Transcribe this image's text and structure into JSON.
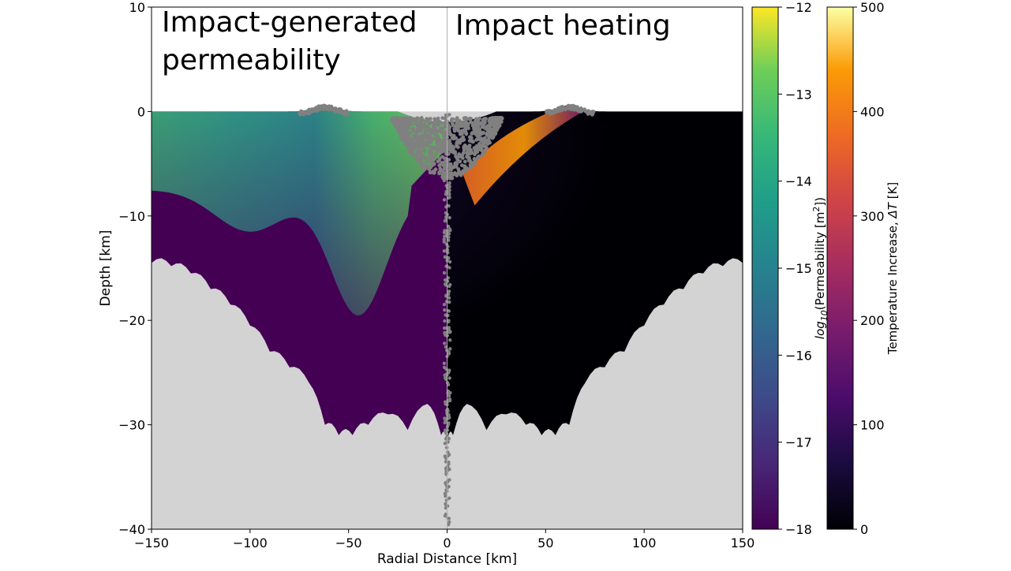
{
  "chart_data": {
    "type": "heatmap",
    "title": "",
    "panel_titles": {
      "left_line1": "Impact-generated",
      "left_line2": "permeability",
      "right": "Impact heating"
    },
    "xlabel": "Radial Distance [km]",
    "ylabel": "Depth [km]",
    "xlim": [
      -150,
      150
    ],
    "ylim": [
      -40,
      10
    ],
    "xticks": [
      -150,
      -100,
      -50,
      0,
      50,
      100,
      150
    ],
    "yticks": [
      -40,
      -30,
      -20,
      -10,
      0,
      10
    ],
    "xtick_labels": [
      "−150",
      "−100",
      "−50",
      "0",
      "50",
      "100",
      "150"
    ],
    "ytick_labels": [
      "−40",
      "−30",
      "−20",
      "−10",
      "0",
      "10"
    ],
    "grid": false,
    "colorbars": [
      {
        "name": "permeability",
        "label_prefix": "log",
        "label_sub": "10",
        "label_main": "(Permeability [m",
        "label_sup": "2",
        "label_suffix": "])",
        "colormap": "viridis",
        "range": [
          -18,
          -12
        ],
        "ticks": [
          -18,
          -17,
          -16,
          -15,
          -14,
          -13,
          -12
        ],
        "tick_labels": [
          "−18",
          "−17",
          "−16",
          "−15",
          "−14",
          "−13",
          "−12"
        ]
      },
      {
        "name": "temperature",
        "label_main": "Temperature Increase, ",
        "label_italic": "ΔT",
        "label_suffix": " [K]",
        "colormap": "inferno",
        "range": [
          0,
          500
        ],
        "ticks": [
          0,
          100,
          200,
          300,
          400,
          500
        ],
        "tick_labels": [
          "0",
          "100",
          "200",
          "300",
          "400",
          "500"
        ]
      }
    ],
    "domain_profile": {
      "description_points_x_km": [
        -150,
        -140,
        -130,
        -120,
        -110,
        -100,
        -90,
        -80,
        -70,
        -62,
        -55,
        -48,
        -40,
        -30,
        -20,
        -10,
        -3,
        0,
        3,
        10,
        20,
        30,
        40,
        48,
        55,
        62,
        70,
        80,
        90,
        100,
        110,
        120,
        130,
        140,
        150
      ],
      "bottom_depth_km": [
        -14.5,
        -14.8,
        -15.5,
        -17,
        -18.5,
        -20.5,
        -23,
        -24.5,
        -26,
        -30,
        -31,
        -31,
        -30,
        -29,
        -30.5,
        -28,
        -31,
        -31.5,
        -31,
        -28,
        -30.5,
        -29,
        -30,
        -31,
        -31,
        -30,
        -26,
        -24.5,
        -23,
        -20.5,
        -18.5,
        -17,
        -15.5,
        -14.8,
        -14.5
      ],
      "rim_x_km": [
        -62,
        62
      ],
      "rim_height_km": 0.6,
      "transient_cavity_radius_km": 25
    },
    "colors": {
      "background_domain": "#d3d3d3",
      "tracer_gray": "#808080",
      "low_perm": "#440154",
      "divider": "#b0b0b0"
    }
  }
}
